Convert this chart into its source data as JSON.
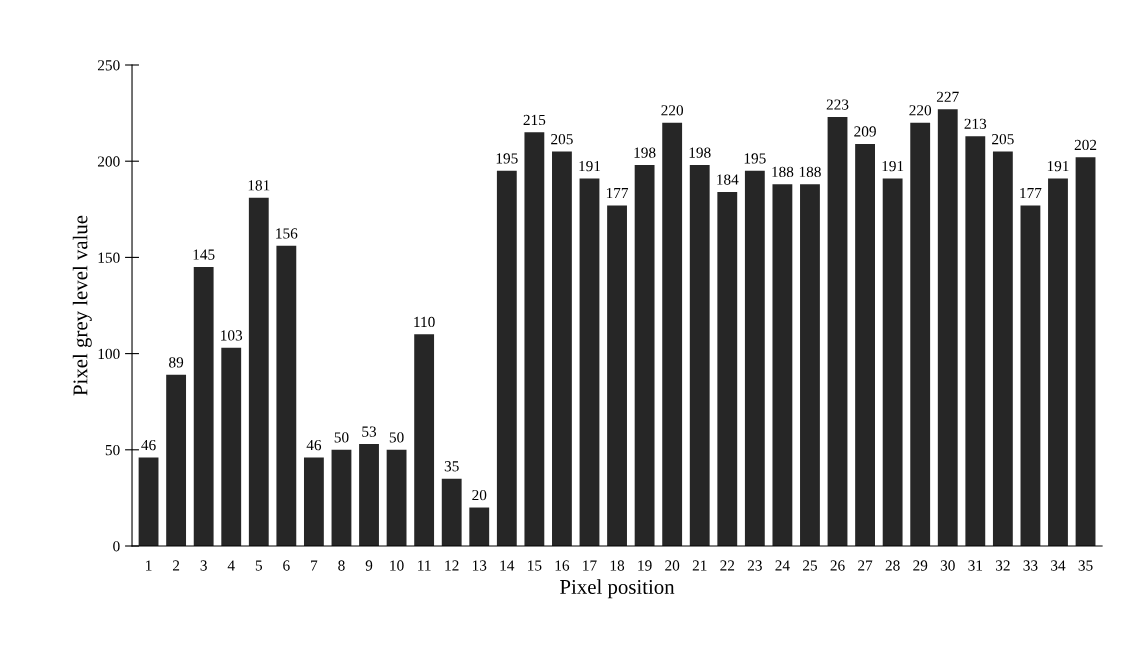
{
  "chart_data": {
    "type": "bar",
    "xlabel": "Pixel position",
    "ylabel": "Pixel grey level value",
    "categories": [
      "1",
      "2",
      "3",
      "4",
      "5",
      "6",
      "7",
      "8",
      "9",
      "10",
      "11",
      "12",
      "13",
      "14",
      "15",
      "16",
      "17",
      "18",
      "19",
      "20",
      "21",
      "22",
      "23",
      "24",
      "25",
      "26",
      "27",
      "28",
      "29",
      "30",
      "31",
      "32",
      "33",
      "34",
      "35"
    ],
    "values": [
      46,
      89,
      145,
      103,
      181,
      156,
      46,
      50,
      53,
      50,
      110,
      35,
      20,
      195,
      215,
      205,
      191,
      177,
      198,
      220,
      198,
      184,
      195,
      188,
      188,
      223,
      209,
      191,
      220,
      227,
      213,
      205,
      177,
      191,
      202
    ],
    "color": "#262626",
    "ylim": [
      0,
      250
    ],
    "yticks": [
      0,
      50,
      100,
      150,
      200,
      250
    ],
    "data_labels": true,
    "grid": false,
    "legend": false
  }
}
